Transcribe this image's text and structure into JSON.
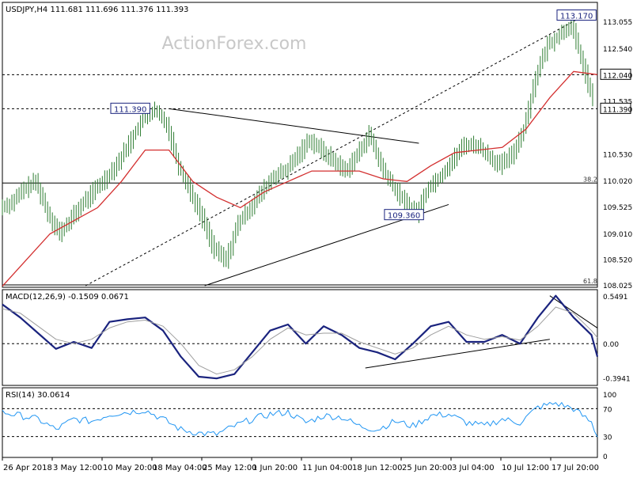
{
  "watermark": "ActionForex.com",
  "colors": {
    "background": "#ffffff",
    "frame": "#000000",
    "price_bars": "#2e7d32",
    "sma_line": "#d32f2f",
    "macd_line": "#1a237e",
    "signal_line": "#9e9e9e",
    "rsi_line": "#2196f3",
    "label_border": "#1a237e"
  },
  "chart_data": [
    {
      "type": "line",
      "panel": "price",
      "title": "USDJPY,H4  111.681 111.696 111.376 111.393",
      "ylim": [
        107.98,
        113.42
      ],
      "y_ticks": [
        "113.055",
        "112.540",
        "112.040",
        "111.535",
        "111.390",
        "110.530",
        "110.020",
        "109.525",
        "109.010",
        "108.520",
        "108.025"
      ],
      "ohlc_last": {
        "open": 111.681,
        "high": 111.696,
        "low": 111.376,
        "close": 111.393
      },
      "annotations": [
        {
          "text": "113.170",
          "x": 96.5,
          "y": 113.17
        },
        {
          "text": "111.390",
          "x": 21.5,
          "y": 111.39
        },
        {
          "text": "109.360",
          "x": 67.5,
          "y": 109.36
        }
      ],
      "horizontal_levels": [
        {
          "label": "112.040",
          "y": 112.04,
          "style": "dashed"
        },
        {
          "label": "111.390",
          "y": 111.39,
          "style": "dashed"
        },
        {
          "label": "38.2",
          "y": 109.97,
          "style": "solid"
        },
        {
          "label": "61.8",
          "y": 108.025,
          "style": "solid"
        }
      ],
      "trendlines": [
        {
          "x0": 28,
          "y0": 111.39,
          "x1": 70,
          "y1": 110.73,
          "style": "solid"
        },
        {
          "x0": 34,
          "y0": 108.01,
          "x1": 75,
          "y1": 109.56,
          "style": "solid"
        },
        {
          "x0": 14,
          "y0": 108.01,
          "x1": 97,
          "y1": 113.12,
          "style": "dashed"
        }
      ],
      "series": [
        {
          "kind": "price",
          "x": [
            0,
            2,
            4,
            6,
            8,
            10,
            12,
            14,
            16,
            18,
            20,
            22,
            24,
            26,
            28,
            30,
            32,
            34,
            36,
            38,
            40,
            42,
            44,
            46,
            48,
            50,
            52,
            54,
            56,
            58,
            60,
            62,
            64,
            66,
            68,
            70,
            72,
            74,
            76,
            78,
            80,
            82,
            84,
            86,
            88,
            90,
            92,
            94,
            96,
            98,
            100
          ],
          "values": [
            109.5,
            109.6,
            109.85,
            110.0,
            109.4,
            109.0,
            109.3,
            109.6,
            109.85,
            110.1,
            110.4,
            110.8,
            111.2,
            111.35,
            111.1,
            110.3,
            109.8,
            109.3,
            108.7,
            108.5,
            109.2,
            109.5,
            109.8,
            110.1,
            110.2,
            110.5,
            110.8,
            110.6,
            110.4,
            110.2,
            110.5,
            110.9,
            110.3,
            109.9,
            109.6,
            109.4,
            109.9,
            110.1,
            110.4,
            110.7,
            110.7,
            110.5,
            110.3,
            110.5,
            111.0,
            112.0,
            112.6,
            112.8,
            113.0,
            112.2,
            111.39
          ]
        },
        {
          "kind": "sma",
          "x": [
            0,
            4,
            8,
            12,
            16,
            20,
            24,
            28,
            32,
            36,
            40,
            44,
            48,
            52,
            56,
            60,
            64,
            68,
            72,
            76,
            80,
            84,
            88,
            92,
            96,
            100
          ],
          "values": [
            108.0,
            108.5,
            109.0,
            109.25,
            109.5,
            110.0,
            110.6,
            110.6,
            110.0,
            109.7,
            109.5,
            109.8,
            110.0,
            110.2,
            110.2,
            110.2,
            110.05,
            110.0,
            110.3,
            110.55,
            110.6,
            110.65,
            111.0,
            111.6,
            112.1,
            112.04
          ]
        }
      ],
      "x_labels": [
        "26 Apr 2018",
        "3 May 12:00",
        "10 May 20:00",
        "18 May 04:00",
        "25 May 12:00",
        "1 Jun 20:00",
        "11 Jun 04:00",
        "18 Jun 12:00",
        "25 Jun 20:00",
        "3 Jul 04:00",
        "10 Jul 12:00",
        "17 Jul 20:00"
      ]
    },
    {
      "type": "line",
      "panel": "macd",
      "title": "MACD(12,26,9) -0.1509 0.0671",
      "ylim": [
        -0.48,
        0.62
      ],
      "y_ticks": [
        "0.5491",
        "0.00",
        "-0.3941"
      ],
      "reference_levels": [
        0.0
      ],
      "trendlines": [
        {
          "x0": 61,
          "y0": -0.28,
          "x1": 92,
          "y1": 0.05,
          "style": "solid"
        },
        {
          "x0": 92,
          "y0": 0.55,
          "x1": 100,
          "y1": 0.18,
          "style": "solid"
        }
      ],
      "series": [
        {
          "name": "MACD",
          "x": [
            0,
            3,
            6,
            9,
            12,
            15,
            18,
            21,
            24,
            27,
            30,
            33,
            36,
            39,
            42,
            45,
            48,
            51,
            54,
            57,
            60,
            63,
            66,
            69,
            72,
            75,
            78,
            81,
            84,
            87,
            90,
            93,
            96,
            99,
            100
          ],
          "values": [
            0.45,
            0.3,
            0.12,
            -0.06,
            0.02,
            -0.05,
            0.25,
            0.28,
            0.3,
            0.15,
            -0.15,
            -0.38,
            -0.4,
            -0.35,
            -0.1,
            0.15,
            0.22,
            0.0,
            0.2,
            0.1,
            -0.05,
            -0.1,
            -0.18,
            0.0,
            0.2,
            0.25,
            0.02,
            0.02,
            0.1,
            0.0,
            0.3,
            0.55,
            0.3,
            0.1,
            -0.15
          ]
        },
        {
          "name": "Signal",
          "x": [
            0,
            3,
            6,
            9,
            12,
            15,
            18,
            21,
            24,
            27,
            30,
            33,
            36,
            39,
            42,
            45,
            48,
            51,
            54,
            57,
            60,
            63,
            66,
            69,
            72,
            75,
            78,
            81,
            84,
            87,
            90,
            93,
            96,
            99,
            100
          ],
          "values": [
            0.4,
            0.35,
            0.2,
            0.05,
            0.0,
            0.05,
            0.18,
            0.25,
            0.27,
            0.2,
            0.0,
            -0.25,
            -0.35,
            -0.3,
            -0.15,
            0.05,
            0.18,
            0.1,
            0.12,
            0.12,
            0.02,
            -0.05,
            -0.12,
            -0.05,
            0.1,
            0.2,
            0.1,
            0.05,
            0.08,
            0.04,
            0.2,
            0.42,
            0.35,
            0.15,
            0.07
          ]
        }
      ]
    },
    {
      "type": "line",
      "panel": "rsi",
      "title": "RSI(14) 30.0614",
      "ylim": [
        0,
        100
      ],
      "y_ticks": [
        "100",
        "70",
        "30",
        "0"
      ],
      "reference_levels": [
        70,
        30
      ],
      "series": [
        {
          "name": "RSI",
          "x": [
            0,
            3,
            6,
            9,
            12,
            15,
            18,
            21,
            24,
            27,
            30,
            33,
            36,
            39,
            42,
            45,
            48,
            51,
            54,
            57,
            60,
            63,
            66,
            69,
            72,
            75,
            78,
            81,
            84,
            87,
            90,
            93,
            96,
            99,
            100
          ],
          "values": [
            65,
            60,
            55,
            40,
            55,
            52,
            62,
            65,
            68,
            55,
            40,
            35,
            33,
            45,
            55,
            62,
            65,
            50,
            60,
            58,
            45,
            40,
            52,
            45,
            60,
            62,
            50,
            45,
            55,
            50,
            72,
            78,
            70,
            50,
            30
          ]
        }
      ]
    }
  ]
}
